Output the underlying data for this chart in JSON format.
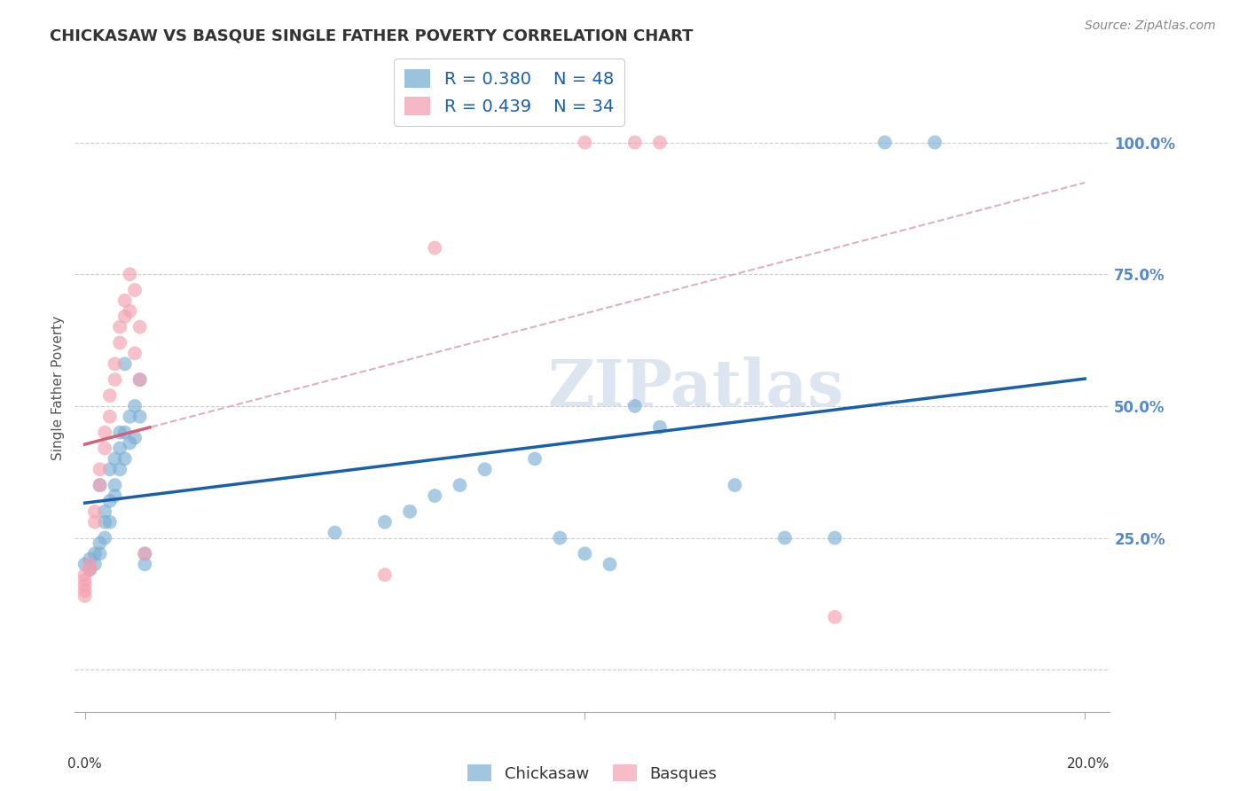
{
  "title": "CHICKASAW VS BASQUE SINGLE FATHER POVERTY CORRELATION CHART",
  "source": "Source: ZipAtlas.com",
  "ylabel": "Single Father Poverty",
  "y_ticks": [
    0.0,
    0.25,
    0.5,
    0.75,
    1.0
  ],
  "y_tick_labels": [
    "",
    "25.0%",
    "50.0%",
    "75.0%",
    "100.0%"
  ],
  "chickasaw_R": 0.38,
  "chickasaw_N": 48,
  "basque_R": 0.439,
  "basque_N": 34,
  "chickasaw_color": "#7bafd4",
  "basque_color": "#f4a0b0",
  "trendline_chickasaw_color": "#1a5fa8",
  "trendline_basque_color": "#d4607a",
  "trendline_basque_dashed_color": "#e0b0bb",
  "watermark_color": "#dde6f0",
  "chickasaw_points": [
    [
      0.0,
      0.2
    ],
    [
      0.001,
      0.21
    ],
    [
      0.001,
      0.19
    ],
    [
      0.002,
      0.22
    ],
    [
      0.002,
      0.2
    ],
    [
      0.003,
      0.24
    ],
    [
      0.003,
      0.22
    ],
    [
      0.003,
      0.35
    ],
    [
      0.004,
      0.28
    ],
    [
      0.004,
      0.25
    ],
    [
      0.004,
      0.3
    ],
    [
      0.005,
      0.32
    ],
    [
      0.005,
      0.28
    ],
    [
      0.005,
      0.38
    ],
    [
      0.006,
      0.35
    ],
    [
      0.006,
      0.33
    ],
    [
      0.006,
      0.4
    ],
    [
      0.007,
      0.42
    ],
    [
      0.007,
      0.38
    ],
    [
      0.007,
      0.45
    ],
    [
      0.008,
      0.45
    ],
    [
      0.008,
      0.4
    ],
    [
      0.008,
      0.58
    ],
    [
      0.009,
      0.48
    ],
    [
      0.009,
      0.43
    ],
    [
      0.01,
      0.5
    ],
    [
      0.01,
      0.44
    ],
    [
      0.011,
      0.55
    ],
    [
      0.011,
      0.48
    ],
    [
      0.012,
      0.2
    ],
    [
      0.012,
      0.22
    ],
    [
      0.05,
      0.26
    ],
    [
      0.06,
      0.28
    ],
    [
      0.065,
      0.3
    ],
    [
      0.07,
      0.33
    ],
    [
      0.075,
      0.35
    ],
    [
      0.08,
      0.38
    ],
    [
      0.09,
      0.4
    ],
    [
      0.095,
      0.25
    ],
    [
      0.1,
      0.22
    ],
    [
      0.105,
      0.2
    ],
    [
      0.11,
      0.5
    ],
    [
      0.115,
      0.46
    ],
    [
      0.13,
      0.35
    ],
    [
      0.14,
      0.25
    ],
    [
      0.15,
      0.25
    ],
    [
      0.16,
      1.0
    ],
    [
      0.17,
      1.0
    ]
  ],
  "basque_points": [
    [
      0.0,
      0.18
    ],
    [
      0.0,
      0.17
    ],
    [
      0.0,
      0.16
    ],
    [
      0.0,
      0.15
    ],
    [
      0.0,
      0.14
    ],
    [
      0.001,
      0.2
    ],
    [
      0.001,
      0.19
    ],
    [
      0.002,
      0.3
    ],
    [
      0.002,
      0.28
    ],
    [
      0.003,
      0.38
    ],
    [
      0.003,
      0.35
    ],
    [
      0.004,
      0.45
    ],
    [
      0.004,
      0.42
    ],
    [
      0.005,
      0.52
    ],
    [
      0.005,
      0.48
    ],
    [
      0.006,
      0.58
    ],
    [
      0.006,
      0.55
    ],
    [
      0.007,
      0.65
    ],
    [
      0.007,
      0.62
    ],
    [
      0.008,
      0.7
    ],
    [
      0.008,
      0.67
    ],
    [
      0.009,
      0.75
    ],
    [
      0.009,
      0.68
    ],
    [
      0.01,
      0.72
    ],
    [
      0.01,
      0.6
    ],
    [
      0.011,
      0.65
    ],
    [
      0.011,
      0.55
    ],
    [
      0.012,
      0.22
    ],
    [
      0.06,
      0.18
    ],
    [
      0.07,
      0.8
    ],
    [
      0.1,
      1.0
    ],
    [
      0.11,
      1.0
    ],
    [
      0.115,
      1.0
    ],
    [
      0.15,
      0.1
    ]
  ]
}
